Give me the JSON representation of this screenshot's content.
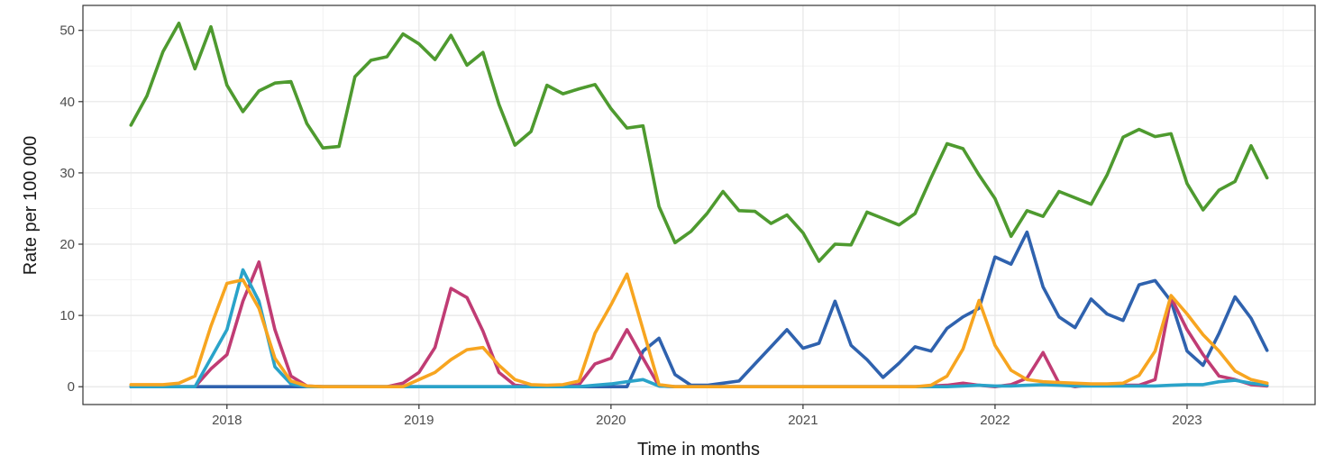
{
  "chart_data": {
    "type": "line",
    "title": "",
    "xlabel": "Time in months",
    "ylabel": "Rate per 100 000",
    "x_tick_labels": [
      "2018",
      "2019",
      "2020",
      "2021",
      "2022",
      "2023"
    ],
    "y_tick_labels": [
      "0",
      "10",
      "20",
      "30",
      "40",
      "50"
    ],
    "xlim": [
      "2017-04",
      "2023-09"
    ],
    "ylim": [
      -2.5,
      53.5
    ],
    "grid": true,
    "legend": "none",
    "months": [
      "2017-07",
      "2017-08",
      "2017-09",
      "2017-10",
      "2017-11",
      "2017-12",
      "2018-01",
      "2018-02",
      "2018-03",
      "2018-04",
      "2018-05",
      "2018-06",
      "2018-07",
      "2018-08",
      "2018-09",
      "2018-10",
      "2018-11",
      "2018-12",
      "2019-01",
      "2019-02",
      "2019-03",
      "2019-04",
      "2019-05",
      "2019-06",
      "2019-07",
      "2019-08",
      "2019-09",
      "2019-10",
      "2019-11",
      "2019-12",
      "2020-01",
      "2020-02",
      "2020-03",
      "2020-04",
      "2020-05",
      "2020-06",
      "2020-07",
      "2020-08",
      "2020-09",
      "2020-10",
      "2020-11",
      "2020-12",
      "2021-01",
      "2021-02",
      "2021-03",
      "2021-04",
      "2021-05",
      "2021-06",
      "2021-07",
      "2021-08",
      "2021-09",
      "2021-10",
      "2021-11",
      "2021-12",
      "2022-01",
      "2022-02",
      "2022-03",
      "2022-04",
      "2022-05",
      "2022-06",
      "2022-07",
      "2022-08",
      "2022-09",
      "2022-10",
      "2022-11",
      "2022-12",
      "2023-01",
      "2023-02",
      "2023-03",
      "2023-04",
      "2023-05",
      "2023-06"
    ],
    "series": [
      {
        "color": "#4e9a2f",
        "values": [
          36.7,
          40.8,
          47.0,
          51.0,
          44.6,
          50.5,
          42.3,
          38.6,
          41.5,
          42.6,
          42.8,
          36.9,
          33.5,
          33.7,
          43.5,
          45.8,
          46.3,
          49.5,
          48.1,
          45.9,
          49.3,
          45.1,
          46.9,
          39.6,
          33.9,
          35.8,
          42.3,
          41.1,
          41.8,
          42.4,
          39.0,
          36.3,
          36.6,
          25.3,
          20.2,
          21.8,
          24.3,
          27.4,
          24.7,
          24.6,
          22.9,
          24.1,
          21.6,
          17.6,
          20.0,
          19.9,
          24.5,
          23.6,
          22.7,
          24.3,
          29.3,
          34.1,
          33.4,
          29.7,
          26.4,
          21.1,
          24.7,
          23.9,
          27.4,
          26.5,
          25.6,
          29.7,
          35.0,
          36.1,
          35.1,
          35.5,
          28.5,
          24.8,
          27.6,
          28.8,
          33.8,
          29.3
        ]
      },
      {
        "color": "#2f62ae",
        "values": [
          0,
          0,
          0,
          0,
          0,
          0,
          0,
          0,
          0,
          0,
          0,
          0,
          0,
          0,
          0,
          0,
          0,
          0,
          0,
          0,
          0,
          0,
          0,
          0,
          0,
          0,
          0,
          0,
          0,
          0,
          0,
          0,
          5.0,
          6.8,
          1.7,
          0.2,
          0.2,
          0.5,
          0.8,
          3.2,
          5.6,
          8.0,
          5.4,
          6.1,
          12.0,
          5.8,
          3.8,
          1.3,
          3.3,
          5.6,
          5.0,
          8.2,
          9.8,
          11.0,
          18.2,
          17.2,
          21.7,
          14.0,
          9.8,
          8.3,
          12.3,
          10.2,
          9.3,
          14.3,
          14.9,
          12.0,
          5.0,
          3.0,
          7.5,
          12.6,
          9.6,
          5.1
        ]
      },
      {
        "color": "#c03c74",
        "values": [
          0,
          0,
          0,
          0,
          0,
          2.5,
          4.5,
          12.0,
          17.5,
          8.0,
          1.5,
          0.1,
          0,
          0,
          0,
          0,
          0,
          0.5,
          2.0,
          5.5,
          13.8,
          12.5,
          7.8,
          2.0,
          0.2,
          0,
          0,
          0,
          0.3,
          3.2,
          4.0,
          8.0,
          4.0,
          0.1,
          0,
          0,
          0,
          0,
          0,
          0,
          0,
          0,
          0,
          0,
          0,
          0,
          0,
          0,
          0,
          0,
          0.1,
          0.2,
          0.5,
          0.2,
          0,
          0.3,
          1.2,
          4.8,
          0.5,
          0,
          0.3,
          0.3,
          0.2,
          0.2,
          1.0,
          12.5,
          8.0,
          4.5,
          1.5,
          1.0,
          0.3,
          0.1
        ]
      },
      {
        "color": "#2aa3c9",
        "values": [
          0,
          0,
          0,
          0,
          0,
          4.0,
          8.0,
          16.4,
          12.0,
          2.8,
          0.4,
          0,
          0,
          0,
          0,
          0,
          0,
          0,
          0,
          0,
          0,
          0,
          0,
          0,
          0,
          0,
          0,
          0,
          0,
          0.2,
          0.4,
          0.7,
          1.0,
          0.1,
          0,
          0,
          0,
          0,
          0,
          0,
          0,
          0,
          0,
          0,
          0,
          0,
          0,
          0,
          0,
          0,
          0,
          0,
          0.1,
          0.2,
          0.1,
          0.1,
          0.2,
          0.3,
          0.2,
          0.1,
          0.1,
          0.1,
          0.1,
          0.1,
          0.1,
          0.2,
          0.3,
          0.3,
          0.7,
          0.9,
          0.5,
          0.2
        ]
      },
      {
        "color": "#f7a520",
        "values": [
          0.3,
          0.3,
          0.3,
          0.5,
          1.5,
          8.5,
          14.5,
          15.0,
          11.0,
          4.0,
          0.8,
          0.1,
          0,
          0,
          0,
          0,
          0,
          0,
          1.0,
          2.0,
          3.8,
          5.2,
          5.5,
          3.0,
          1.0,
          0.3,
          0.2,
          0.3,
          0.8,
          7.5,
          11.5,
          15.8,
          8.0,
          0.3,
          0,
          0,
          0,
          0,
          0,
          0,
          0,
          0,
          0,
          0,
          0,
          0,
          0,
          0,
          0,
          0,
          0.2,
          1.5,
          5.3,
          12.1,
          5.8,
          2.3,
          1.0,
          0.7,
          0.6,
          0.5,
          0.4,
          0.4,
          0.5,
          1.6,
          5.0,
          12.8,
          10.2,
          7.3,
          5.0,
          2.2,
          1.0,
          0.5
        ]
      }
    ]
  }
}
